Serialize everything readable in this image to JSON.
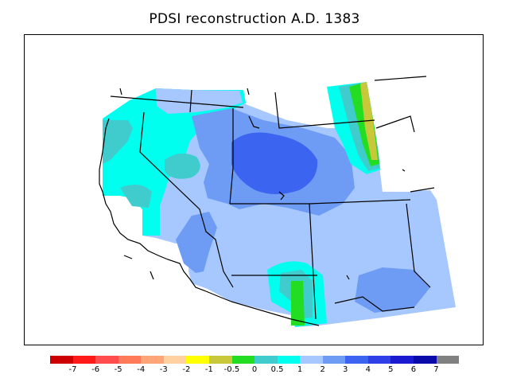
{
  "title": "PDSI reconstruction A.D. 1383",
  "colorbar": {
    "colors": [
      "#cc0000",
      "#ff1a1a",
      "#ff4d4d",
      "#ff7a59",
      "#ffa577",
      "#ffd0a0",
      "#ffff00",
      "#c8c83a",
      "#22dd22",
      "#40cccc",
      "#00ffee",
      "#a6c8ff",
      "#6e9cf5",
      "#3b64f0",
      "#2e3fe8",
      "#1a1ad0",
      "#0a0aa8",
      "#808080"
    ],
    "labels": [
      "-7",
      "-6",
      "-5",
      "-4",
      "-3",
      "-2",
      "-1",
      "-0.5",
      "0",
      "0.5",
      "1",
      "2",
      "3",
      "4",
      "5",
      "6",
      "7"
    ]
  },
  "map_colors": {
    "outside": "#ffffff",
    "class_1_2": "#a6c8ff",
    "class_2_3": "#6e9cf5",
    "class_3_4": "#3b64f0",
    "class_05_1": "#00ffee",
    "class_0_05": "#40cccc",
    "class_m05_0": "#22dd22",
    "class_m1_m05": "#c8c83a",
    "lines": "#000000"
  }
}
